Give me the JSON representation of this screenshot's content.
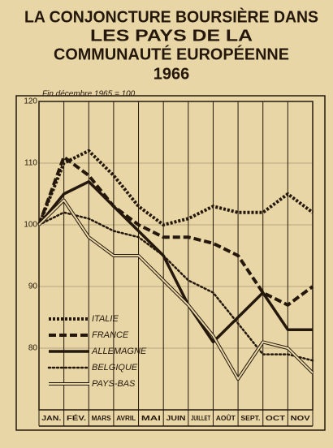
{
  "chart_data": {
    "type": "line",
    "title": [
      "LA CONJONCTURE BOURSIÈRE DANS",
      "LES PAYS DE LA",
      "COMMUNAUTÉ EUROPÉENNE",
      "1966"
    ],
    "annotation": "Fin décembre 1965 = 100",
    "categories": [
      "JAN.",
      "FÉV.",
      "MARS",
      "AVRIL",
      "MAI",
      "JUIN",
      "JUILLET",
      "AOÛT",
      "SEPT.",
      "OCT",
      "NOV"
    ],
    "x": [
      0,
      1,
      2,
      3,
      4,
      5,
      6,
      7,
      8,
      9,
      10,
      11
    ],
    "xlim": [
      0,
      11
    ],
    "ylim": [
      70,
      120
    ],
    "yticks": [
      80,
      90,
      100,
      110,
      120
    ],
    "grid": true,
    "series": [
      {
        "name": "ITALIE",
        "color": "#24180c",
        "line_style": "dotted-thick",
        "values": [
          100,
          110,
          112,
          108,
          103,
          100,
          101,
          103,
          102,
          102,
          105,
          102
        ]
      },
      {
        "name": "FRANCE",
        "color": "#24180c",
        "line_style": "dashed-thick",
        "values": [
          100,
          111,
          108,
          103,
          100,
          98,
          98,
          97,
          95,
          89,
          87,
          90
        ]
      },
      {
        "name": "ALLEMAGNE",
        "color": "#24180c",
        "line_style": "solid-thick",
        "values": [
          100,
          105,
          107,
          103,
          99,
          95,
          87,
          81,
          85,
          89,
          83,
          83
        ]
      },
      {
        "name": "BELGIQUE",
        "color": "#24180c",
        "line_style": "dotted",
        "values": [
          100,
          102,
          101,
          99,
          98,
          95,
          91,
          89,
          84,
          79,
          79,
          78
        ]
      },
      {
        "name": "PAYS-BAS",
        "color": "#24180c",
        "line_style": "double",
        "values": [
          100,
          104,
          98,
          95,
          95,
          91,
          87,
          82,
          75,
          81,
          80,
          76
        ]
      }
    ]
  }
}
